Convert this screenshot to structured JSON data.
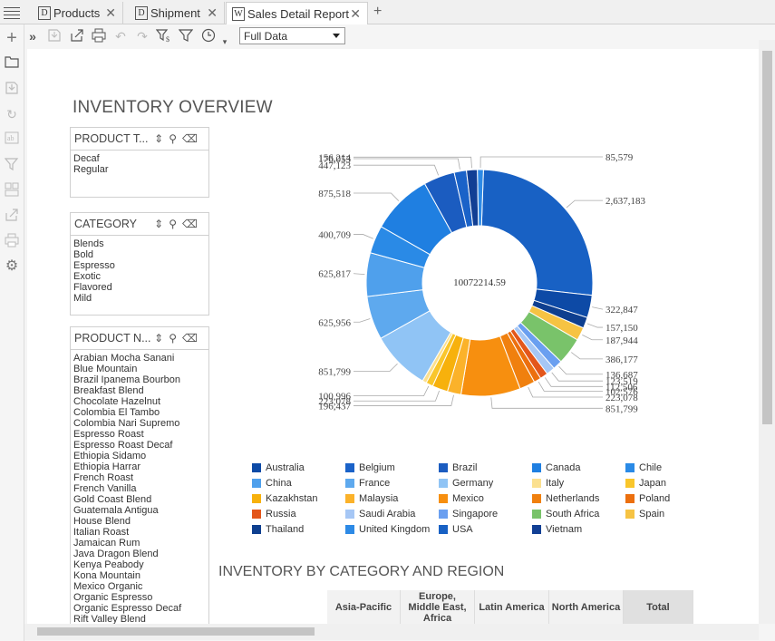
{
  "tabs": [
    {
      "label": "Products",
      "icon_letter": "D"
    },
    {
      "label": "Shipment",
      "icon_letter": "D"
    },
    {
      "label": "Sales Detail Report",
      "icon_letter": "W"
    }
  ],
  "toolbar": {
    "data_mode": "Full Data"
  },
  "report": {
    "title": "INVENTORY OVERVIEW",
    "section2_title": "INVENTORY BY CATEGORY AND REGION"
  },
  "filters": [
    {
      "title": "PRODUCT T...",
      "items": [
        "Decaf",
        "Regular"
      ]
    },
    {
      "title": "CATEGORY",
      "items": [
        "Blends",
        "Bold",
        "Espresso",
        "Exotic",
        "Flavored",
        "Mild"
      ]
    },
    {
      "title": "PRODUCT N...",
      "items": [
        "Arabian Mocha Sanani",
        "Blue Mountain",
        "Brazil Ipanema Bourbon",
        "Breakfast Blend",
        "Chocolate Hazelnut",
        "Colombia El Tambo",
        "Colombia Nari Supremo",
        "Espresso Roast",
        "Espresso Roast Decaf",
        "Ethiopia Sidamo",
        "Ethiopia Harrar",
        "French Roast",
        "French Vanilla",
        "Gold Coast Blend",
        "Guatemala Antigua",
        "House Blend",
        "Italian Roast",
        "Jamaican Rum",
        "Java Dragon Blend",
        "Kenya Peabody",
        "Kona Mountain",
        "Mexico Organic",
        "Organic Espresso",
        "Organic Espresso Decaf",
        "Rift Valley Blend"
      ]
    }
  ],
  "chart_data": {
    "type": "pie",
    "style": "donut",
    "center_label": "10072214.59",
    "slices": [
      {
        "name": "USA",
        "value": 2637183,
        "label": "2,637,183",
        "color": "#1861c4"
      },
      {
        "name": "Australia",
        "value": 322847,
        "label": "322,847",
        "color": "#0d4aa6"
      },
      {
        "name": "Thailand",
        "value": 157150,
        "label": "157,150",
        "color": "#0e3f8f"
      },
      {
        "name": "Spain",
        "value": 187944,
        "label": "187,944",
        "color": "#f6c343"
      },
      {
        "name": "South Africa",
        "value": 386177,
        "label": "386,177",
        "color": "#79c36a"
      },
      {
        "name": "Singapore",
        "value": 136687,
        "label": "136,687",
        "color": "#6a9ff0"
      },
      {
        "name": "Saudi Arabia",
        "value": 123519,
        "label": "123,519",
        "color": "#a6c7f5"
      },
      {
        "name": "Russia",
        "value": 112506,
        "label": "112,506",
        "color": "#e3561b"
      },
      {
        "name": "Poland",
        "value": 102576,
        "label": "102,576",
        "color": "#ec6f0e"
      },
      {
        "name": "Netherlands",
        "value": 223078,
        "label": "223,078",
        "color": "#f0800e"
      },
      {
        "name": "Mexico",
        "value": 851799,
        "label": "851,799",
        "color": "#f78f0f"
      },
      {
        "name": "Malaysia",
        "value": 196437,
        "label": "196,437",
        "color": "#fbb22a"
      },
      {
        "name": "Kazakhstan",
        "value": 223078,
        "label": "223,078",
        "color": "#f7b10c"
      },
      {
        "name": "Japan",
        "value": 100996,
        "label": "100,996",
        "color": "#f9c62b"
      },
      {
        "name": "Italy",
        "value": 60000,
        "label": "",
        "color": "#fbe08f"
      },
      {
        "name": "Germany",
        "value": 851799,
        "label": "851,799",
        "color": "#90c4f5"
      },
      {
        "name": "France",
        "value": 625956,
        "label": "625,956",
        "color": "#5ea9ee"
      },
      {
        "name": "China",
        "value": 625817,
        "label": "625,817",
        "color": "#4fa0ec"
      },
      {
        "name": "Chile",
        "value": 400709,
        "label": "400,709",
        "color": "#2a8ae6"
      },
      {
        "name": "Canada",
        "value": 875518,
        "label": "875,518",
        "color": "#1f7fe1"
      },
      {
        "name": "Brazil",
        "value": 447123,
        "label": "447,123",
        "color": "#1b5cc0"
      },
      {
        "name": "Belgium",
        "value": 176053,
        "label": "176,053",
        "color": "#1a62c8"
      },
      {
        "name": "Vietnam",
        "value": 156214,
        "label": "156,214",
        "color": "#113f94"
      },
      {
        "name": "United Kingdom",
        "value": 85579,
        "label": "85,579",
        "color": "#2d8ae6"
      }
    ]
  },
  "legend": [
    {
      "label": "Australia",
      "color": "#0d4aa6"
    },
    {
      "label": "Belgium",
      "color": "#1a62c8"
    },
    {
      "label": "Brazil",
      "color": "#1b5cc0"
    },
    {
      "label": "Canada",
      "color": "#1f7fe1"
    },
    {
      "label": "Chile",
      "color": "#2a8ae6"
    },
    {
      "label": "China",
      "color": "#4fa0ec"
    },
    {
      "label": "France",
      "color": "#5ea9ee"
    },
    {
      "label": "Germany",
      "color": "#90c4f5"
    },
    {
      "label": "Italy",
      "color": "#fbe08f"
    },
    {
      "label": "Japan",
      "color": "#f9c62b"
    },
    {
      "label": "Kazakhstan",
      "color": "#f7b10c"
    },
    {
      "label": "Malaysia",
      "color": "#fbb22a"
    },
    {
      "label": "Mexico",
      "color": "#f78f0f"
    },
    {
      "label": "Netherlands",
      "color": "#f0800e"
    },
    {
      "label": "Poland",
      "color": "#ec6f0e"
    },
    {
      "label": "Russia",
      "color": "#e3561b"
    },
    {
      "label": "Saudi Arabia",
      "color": "#a6c7f5"
    },
    {
      "label": "Singapore",
      "color": "#6a9ff0"
    },
    {
      "label": "South Africa",
      "color": "#79c36a"
    },
    {
      "label": "Spain",
      "color": "#f6c343"
    },
    {
      "label": "Thailand",
      "color": "#0e3f8f"
    },
    {
      "label": "United Kingdom",
      "color": "#2d8ae6"
    },
    {
      "label": "USA",
      "color": "#1861c4"
    },
    {
      "label": "Vietnam",
      "color": "#113f94"
    }
  ],
  "table": {
    "headers": [
      "Asia-Pacific",
      "Europe, Middle East, Africa",
      "Latin America",
      "North America",
      "Total"
    ]
  }
}
